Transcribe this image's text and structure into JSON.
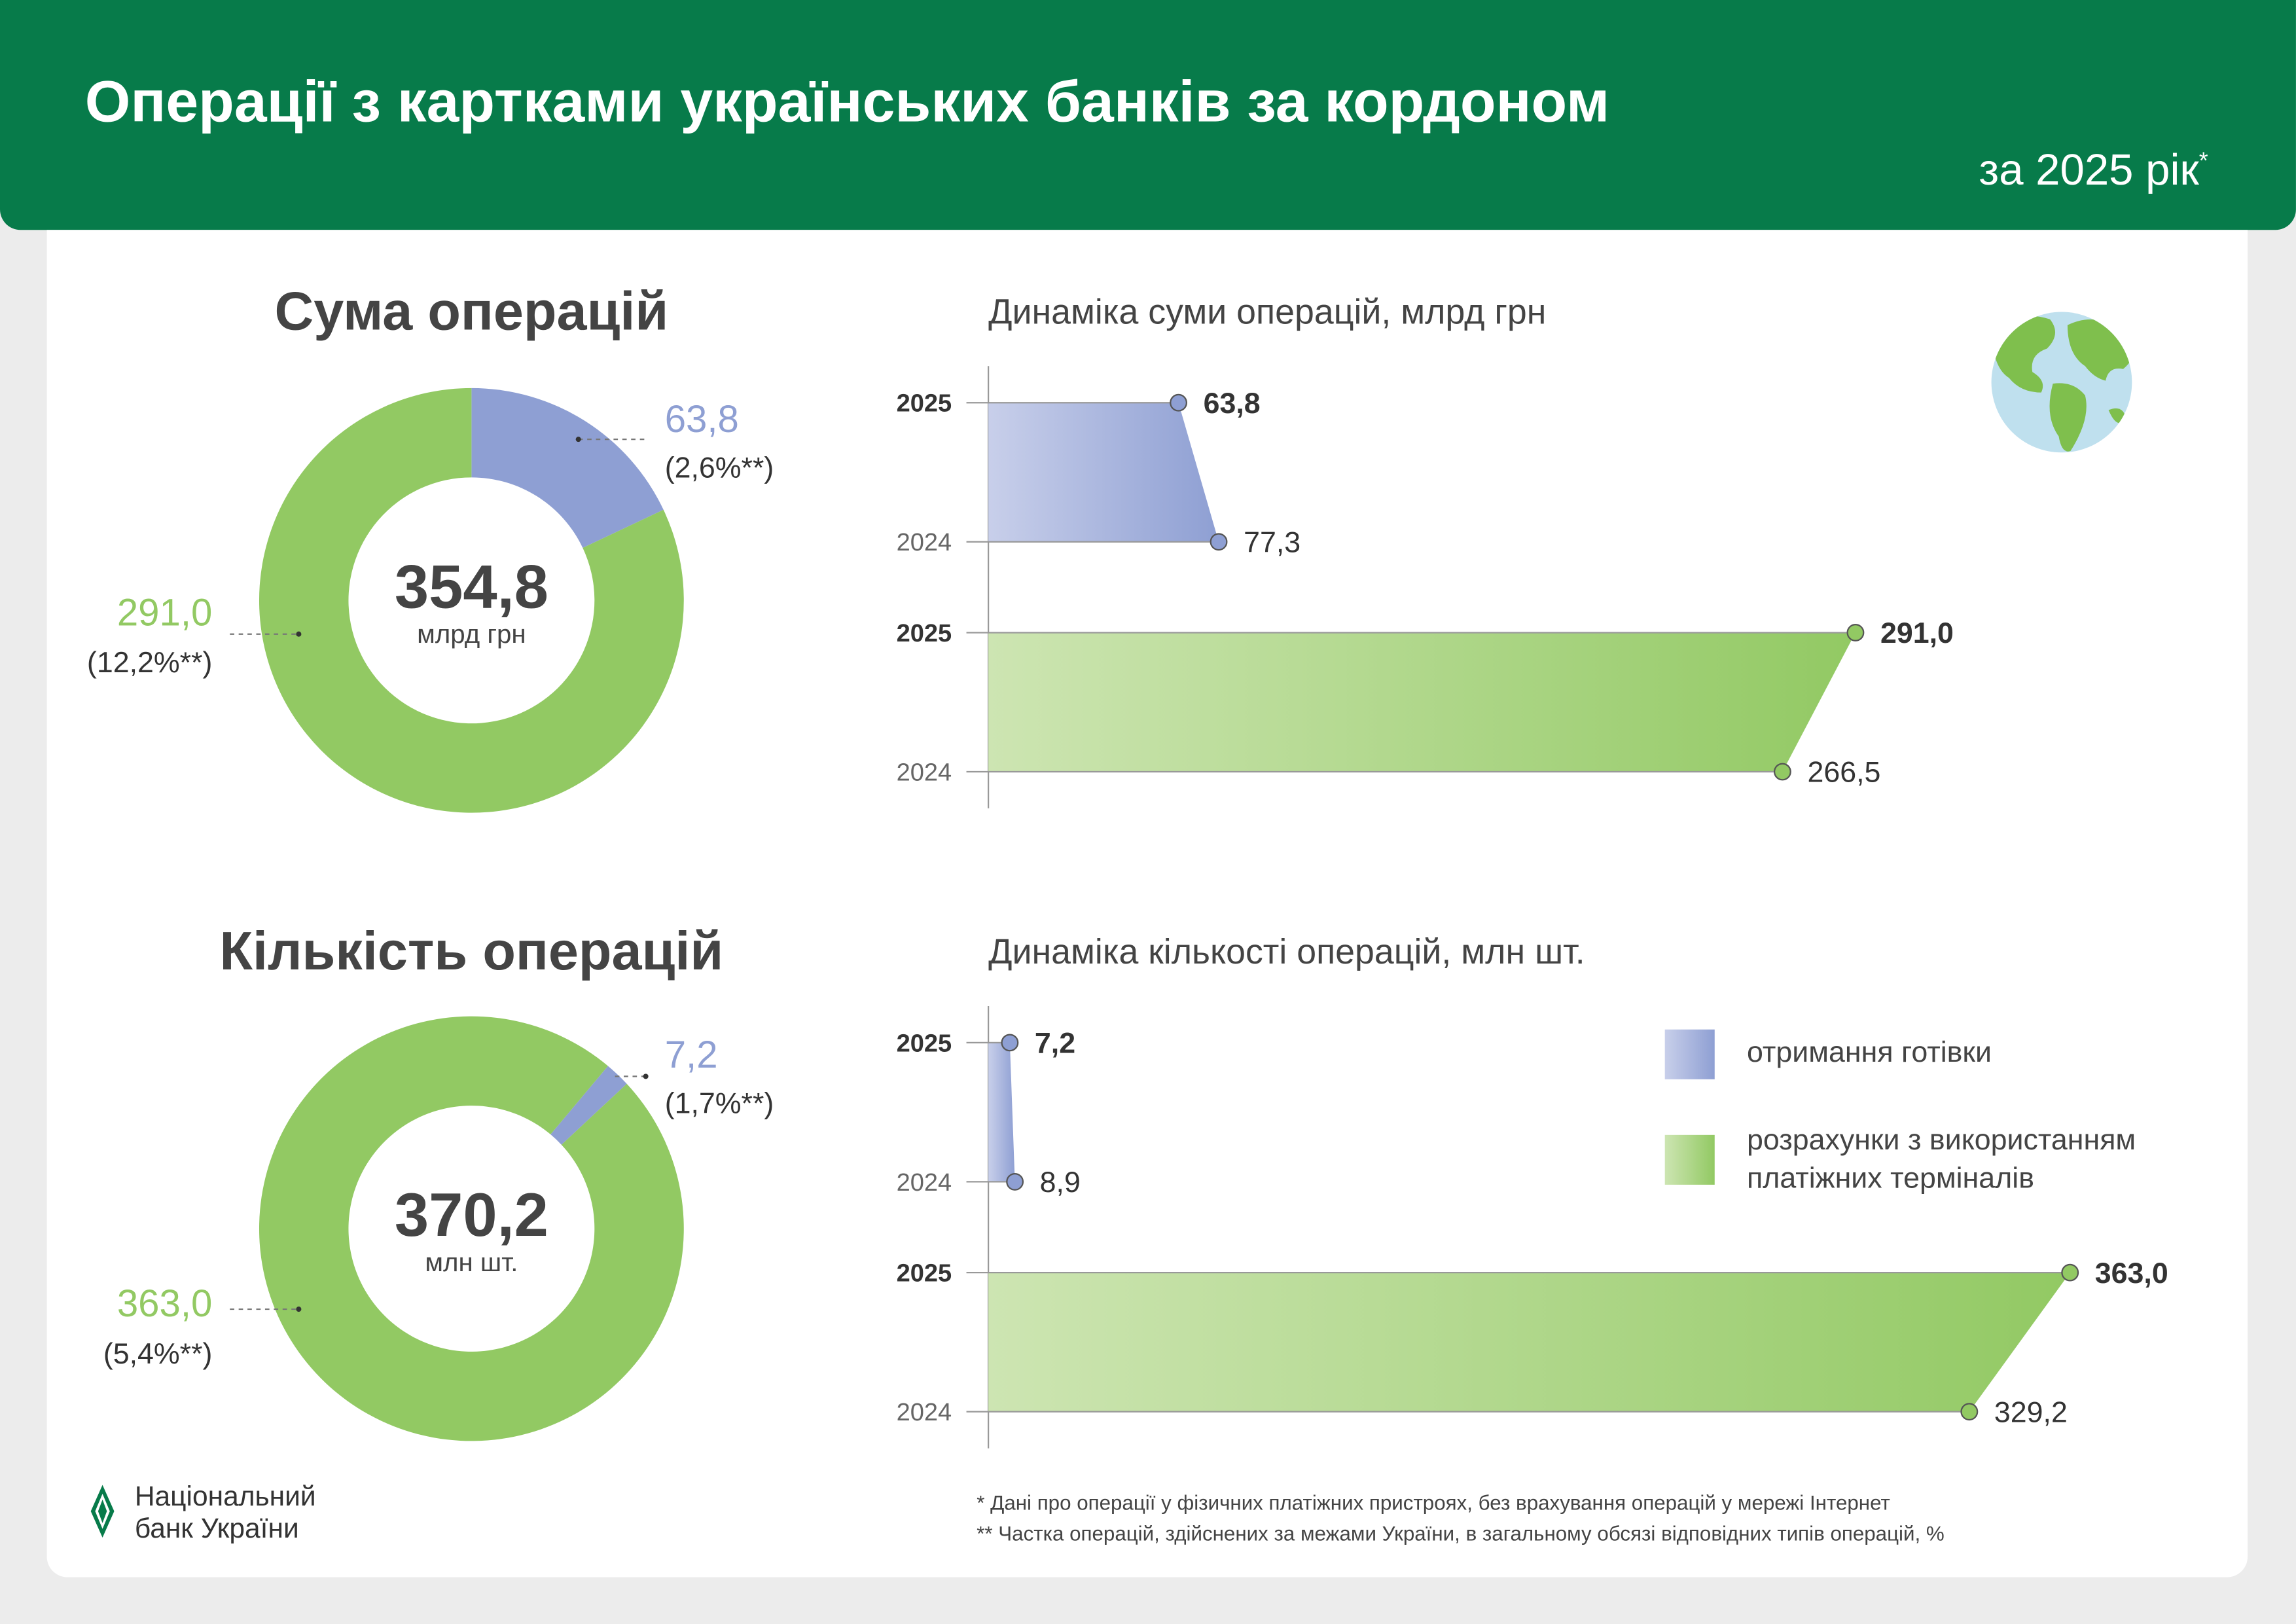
{
  "header": {
    "title": "Операції з картками українських банків за кордоном",
    "subtitle": "за 2025 рік",
    "subtitle_mark": "*"
  },
  "colors": {
    "brand": "#077b4a",
    "cash": "#8e9fd3",
    "cash_light": "#c8cfea",
    "terminal": "#92c963",
    "terminal_light": "#cde5b2",
    "text": "#444444"
  },
  "sections": {
    "sum_title": "Сума операцій",
    "count_title": "Кількість операцій"
  },
  "legend": [
    {
      "label": "отримання готівки",
      "color": "#8e9fd3"
    },
    {
      "label_line1": "розрахунки з використанням",
      "label_line2": "платіжних терміналів",
      "color": "#92c963"
    }
  ],
  "logo": {
    "line1": "Національний",
    "line2": "банк України"
  },
  "footnotes": [
    "* Дані про операції у фізичних платіжних пристроях, без врахування операцій у мережі Інтернет",
    "** Частка операцій, здійснених за межами України, в загальному обсязі відповідних типів операцій, %"
  ],
  "chart_data": [
    {
      "type": "pie",
      "donut": true,
      "total": "354,8",
      "unit": "млрд грн",
      "slices": [
        {
          "category": "отримання готівки",
          "value": 63.8,
          "label": "63,8",
          "share": "(2,6%**)"
        },
        {
          "category": "розрахунки з використанням платіжних терміналів",
          "value": 291.0,
          "label": "291,0",
          "share": "(12,2%**)"
        }
      ]
    },
    {
      "type": "bar",
      "orientation": "horizontal",
      "title": "Динаміка суми операцій, млрд грн",
      "categories": [
        "2025",
        "2024"
      ],
      "series": [
        {
          "name": "отримання готівки",
          "values": [
            63.8,
            77.3
          ],
          "labels": [
            "63,8",
            "77,3"
          ]
        },
        {
          "name": "розрахунки з використанням платіжних терміналів",
          "values": [
            291.0,
            266.5
          ],
          "labels": [
            "291,0",
            "266,5"
          ]
        }
      ]
    },
    {
      "type": "pie",
      "donut": true,
      "total": "370,2",
      "unit": "млн шт.",
      "slices": [
        {
          "category": "отримання готівки",
          "value": 7.2,
          "label": "7,2",
          "share": "(1,7%**)"
        },
        {
          "category": "розрахунки з використанням платіжних терміналів",
          "value": 363.0,
          "label": "363,0",
          "share": "(5,4%**)"
        }
      ]
    },
    {
      "type": "bar",
      "orientation": "horizontal",
      "title": "Динаміка кількості операцій, млн шт.",
      "categories": [
        "2025",
        "2024"
      ],
      "series": [
        {
          "name": "отримання готівки",
          "values": [
            7.2,
            8.9
          ],
          "labels": [
            "7,2",
            "8,9"
          ]
        },
        {
          "name": "розрахунки з використанням платіжних терміналів",
          "values": [
            363.0,
            329.2
          ],
          "labels": [
            "363,0",
            "329,2"
          ]
        }
      ]
    }
  ]
}
